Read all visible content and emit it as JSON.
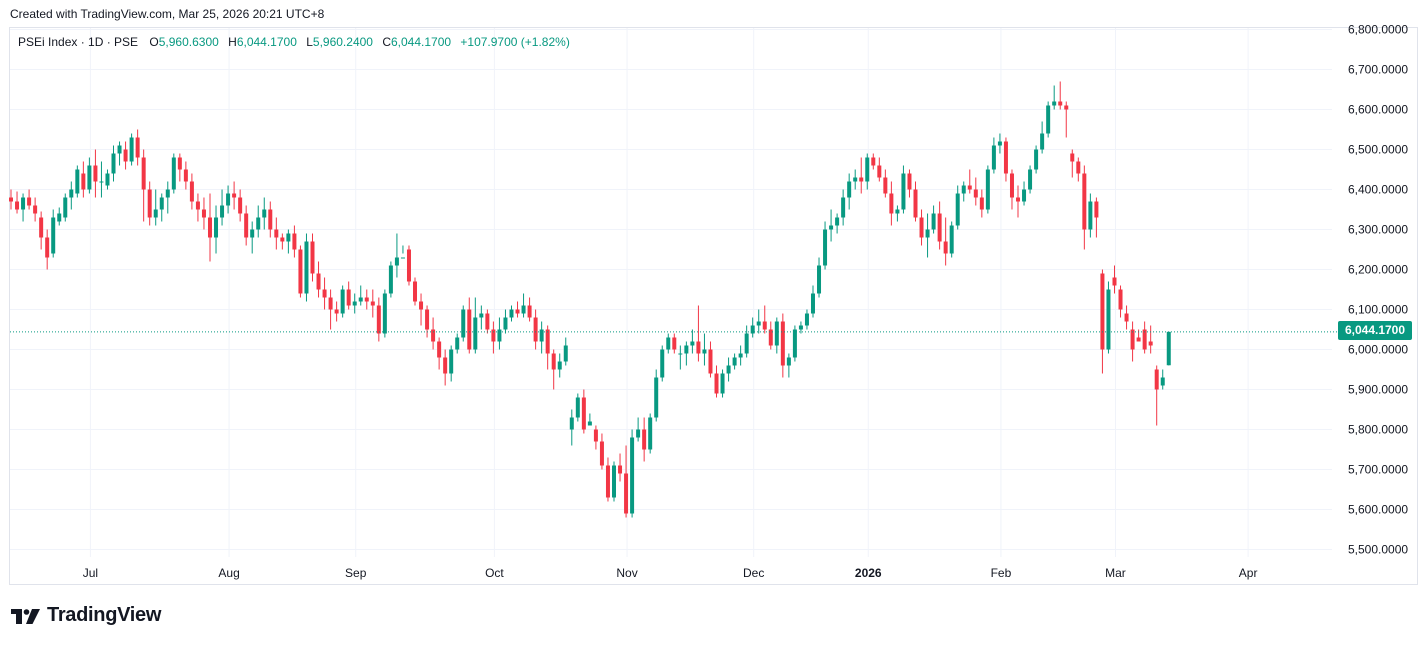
{
  "header": {
    "created_text": "Created with TradingView.com, Mar 25, 2026 20:21 UTC+8"
  },
  "legend": {
    "symbol": "PSEi Index · 1D · PSE",
    "open_label": "O",
    "open_value": "5,960.6300",
    "high_label": "H",
    "high_value": "6,044.1700",
    "low_label": "L",
    "low_value": "5,960.2400",
    "close_label": "C",
    "close_value": "6,044.1700",
    "change": "+107.9700 (+1.82%)"
  },
  "last_price_label": "6,044.1700",
  "footer": {
    "logo_text": "TradingView",
    "logo_icon": "tradingview-logo-icon"
  },
  "colors": {
    "up": "#089981",
    "down": "#F23645",
    "grid": "#f0f3fa",
    "last_line": "#089981"
  },
  "chart_data": {
    "type": "candlestick",
    "title": "PSEi Index · 1D · PSE",
    "ylim": [
      5450,
      6800
    ],
    "y_ticks": [
      {
        "value": 5500,
        "label": "5,500.0000"
      },
      {
        "value": 5600,
        "label": "5,600.0000"
      },
      {
        "value": 5700,
        "label": "5,700.0000"
      },
      {
        "value": 5800,
        "label": "5,800.0000"
      },
      {
        "value": 5900,
        "label": "5,900.0000"
      },
      {
        "value": 6000,
        "label": "6,000.0000"
      },
      {
        "value": 6100,
        "label": "6,100.0000"
      },
      {
        "value": 6200,
        "label": "6,200.0000"
      },
      {
        "value": 6300,
        "label": "6,300.0000"
      },
      {
        "value": 6400,
        "label": "6,400.0000"
      },
      {
        "value": 6500,
        "label": "6,500.0000"
      },
      {
        "value": 6600,
        "label": "6,600.0000"
      },
      {
        "value": 6700,
        "label": "6,700.0000"
      },
      {
        "value": 6800,
        "label": "6,800.0000"
      }
    ],
    "x_labels": [
      {
        "index": 13,
        "label": "Jul",
        "bold": false
      },
      {
        "index": 36,
        "label": "Aug",
        "bold": false
      },
      {
        "index": 57,
        "label": "Sep",
        "bold": false
      },
      {
        "index": 80,
        "label": "Oct",
        "bold": false
      },
      {
        "index": 102,
        "label": "Nov",
        "bold": false
      },
      {
        "index": 123,
        "label": "Dec",
        "bold": false
      },
      {
        "index": 142,
        "label": "2026",
        "bold": true
      },
      {
        "index": 164,
        "label": "Feb",
        "bold": false
      },
      {
        "index": 183,
        "label": "Mar",
        "bold": false
      },
      {
        "index": 205,
        "label": "Apr",
        "bold": false
      }
    ],
    "last_price": 6044.17,
    "candles": [
      [
        6380,
        6400,
        6350,
        6370
      ],
      [
        6370,
        6395,
        6340,
        6350
      ],
      [
        6350,
        6390,
        6320,
        6380
      ],
      [
        6380,
        6400,
        6350,
        6360
      ],
      [
        6360,
        6380,
        6320,
        6340
      ],
      [
        6330,
        6345,
        6250,
        6280
      ],
      [
        6280,
        6300,
        6200,
        6230
      ],
      [
        6240,
        6350,
        6230,
        6330
      ],
      [
        6320,
        6355,
        6310,
        6340
      ],
      [
        6330,
        6390,
        6320,
        6380
      ],
      [
        6380,
        6420,
        6350,
        6400
      ],
      [
        6390,
        6460,
        6380,
        6450
      ],
      [
        6440,
        6470,
        6380,
        6400
      ],
      [
        6400,
        6480,
        6390,
        6460
      ],
      [
        6460,
        6500,
        6380,
        6420
      ],
      [
        6420,
        6470,
        6380,
        6420
      ],
      [
        6410,
        6450,
        6400,
        6440
      ],
      [
        6440,
        6510,
        6420,
        6490
      ],
      [
        6490,
        6520,
        6460,
        6510
      ],
      [
        6500,
        6520,
        6450,
        6470
      ],
      [
        6470,
        6540,
        6460,
        6530
      ],
      [
        6530,
        6550,
        6460,
        6480
      ],
      [
        6480,
        6500,
        6320,
        6400
      ],
      [
        6400,
        6420,
        6310,
        6330
      ],
      [
        6330,
        6400,
        6310,
        6350
      ],
      [
        6350,
        6390,
        6320,
        6380
      ],
      [
        6380,
        6420,
        6340,
        6400
      ],
      [
        6400,
        6490,
        6390,
        6480
      ],
      [
        6480,
        6490,
        6420,
        6450
      ],
      [
        6450,
        6470,
        6400,
        6420
      ],
      [
        6420,
        6440,
        6350,
        6370
      ],
      [
        6370,
        6390,
        6320,
        6350
      ],
      [
        6350,
        6380,
        6300,
        6330
      ],
      [
        6330,
        6390,
        6220,
        6280
      ],
      [
        6280,
        6360,
        6240,
        6330
      ],
      [
        6330,
        6400,
        6310,
        6360
      ],
      [
        6360,
        6410,
        6340,
        6390
      ],
      [
        6390,
        6420,
        6350,
        6380
      ],
      [
        6380,
        6400,
        6320,
        6340
      ],
      [
        6340,
        6360,
        6260,
        6280
      ],
      [
        6280,
        6320,
        6240,
        6300
      ],
      [
        6300,
        6360,
        6280,
        6330
      ],
      [
        6330,
        6380,
        6300,
        6350
      ],
      [
        6350,
        6370,
        6280,
        6300
      ],
      [
        6300,
        6330,
        6250,
        6280
      ],
      [
        6280,
        6290,
        6250,
        6270
      ],
      [
        6270,
        6300,
        6240,
        6290
      ],
      [
        6290,
        6310,
        6230,
        6250
      ],
      [
        6250,
        6260,
        6130,
        6140
      ],
      [
        6140,
        6290,
        6120,
        6270
      ],
      [
        6270,
        6290,
        6170,
        6190
      ],
      [
        6190,
        6220,
        6130,
        6150
      ],
      [
        6150,
        6180,
        6100,
        6130
      ],
      [
        6130,
        6150,
        6050,
        6100
      ],
      [
        6100,
        6120,
        6070,
        6090
      ],
      [
        6090,
        6160,
        6080,
        6150
      ],
      [
        6150,
        6170,
        6100,
        6110
      ],
      [
        6110,
        6140,
        6090,
        6120
      ],
      [
        6120,
        6160,
        6110,
        6130
      ],
      [
        6130,
        6150,
        6100,
        6120
      ],
      [
        6120,
        6150,
        6080,
        6110
      ],
      [
        6110,
        6130,
        6020,
        6040
      ],
      [
        6040,
        6150,
        6030,
        6140
      ],
      [
        6140,
        6220,
        6130,
        6210
      ],
      [
        6210,
        6290,
        6180,
        6230
      ],
      [
        6230,
        6260,
        6240,
        6230
      ],
      [
        6250,
        6260,
        6160,
        6170
      ],
      [
        6170,
        6180,
        6110,
        6120
      ],
      [
        6120,
        6140,
        6060,
        6100
      ],
      [
        6100,
        6110,
        6030,
        6050
      ],
      [
        6050,
        6080,
        6000,
        6020
      ],
      [
        6020,
        6030,
        5950,
        5980
      ],
      [
        5980,
        6000,
        5910,
        5940
      ],
      [
        5940,
        6010,
        5920,
        6000
      ],
      [
        6000,
        6040,
        5990,
        6030
      ],
      [
        6030,
        6110,
        6020,
        6100
      ],
      [
        6100,
        6130,
        5990,
        6000
      ],
      [
        6000,
        6130,
        5990,
        6080
      ],
      [
        6080,
        6110,
        6050,
        6090
      ],
      [
        6090,
        6100,
        6040,
        6050
      ],
      [
        6050,
        6070,
        5990,
        6020
      ],
      [
        6020,
        6080,
        6000,
        6050
      ],
      [
        6050,
        6100,
        6040,
        6080
      ],
      [
        6080,
        6110,
        6070,
        6100
      ],
      [
        6100,
        6120,
        6080,
        6090
      ],
      [
        6090,
        6140,
        6080,
        6110
      ],
      [
        6110,
        6130,
        6070,
        6080
      ],
      [
        6080,
        6100,
        6000,
        6020
      ],
      [
        6020,
        6070,
        5990,
        6050
      ],
      [
        6050,
        6060,
        5950,
        5990
      ],
      [
        5990,
        6000,
        5900,
        5950
      ],
      [
        5950,
        5990,
        5930,
        5970
      ],
      [
        5970,
        6030,
        5960,
        6010
      ],
      [
        5800,
        5850,
        5760,
        5830
      ],
      [
        5830,
        5890,
        5820,
        5880
      ],
      [
        5880,
        5900,
        5790,
        5800
      ],
      [
        5810,
        5840,
        5810,
        5820
      ],
      [
        5800,
        5810,
        5750,
        5770
      ],
      [
        5770,
        5790,
        5700,
        5710
      ],
      [
        5710,
        5730,
        5620,
        5630
      ],
      [
        5630,
        5720,
        5620,
        5710
      ],
      [
        5710,
        5740,
        5670,
        5690
      ],
      [
        5690,
        5760,
        5580,
        5590
      ],
      [
        5590,
        5800,
        5580,
        5780
      ],
      [
        5780,
        5830,
        5770,
        5800
      ],
      [
        5800,
        5830,
        5720,
        5750
      ],
      [
        5750,
        5840,
        5740,
        5830
      ],
      [
        5830,
        5950,
        5820,
        5930
      ],
      [
        5930,
        6010,
        5920,
        6000
      ],
      [
        6000,
        6040,
        5990,
        6030
      ],
      [
        6030,
        6040,
        5990,
        6000
      ],
      [
        5990,
        6010,
        5950,
        5990
      ],
      [
        5990,
        6020,
        5960,
        6010
      ],
      [
        6010,
        6050,
        5990,
        6020
      ],
      [
        6020,
        6110,
        5970,
        5990
      ],
      [
        5990,
        6040,
        5960,
        6000
      ],
      [
        6000,
        6020,
        5930,
        5940
      ],
      [
        5940,
        5960,
        5880,
        5890
      ],
      [
        5890,
        5950,
        5880,
        5940
      ],
      [
        5940,
        5980,
        5920,
        5960
      ],
      [
        5960,
        5990,
        5950,
        5980
      ],
      [
        5980,
        6010,
        5960,
        5990
      ],
      [
        5990,
        6060,
        5980,
        6040
      ],
      [
        6040,
        6080,
        6030,
        6060
      ],
      [
        6060,
        6100,
        6040,
        6070
      ],
      [
        6070,
        6110,
        6040,
        6050
      ],
      [
        6050,
        6070,
        6000,
        6010
      ],
      [
        6010,
        6080,
        5990,
        6070
      ],
      [
        6070,
        6090,
        5930,
        5960
      ],
      [
        5960,
        5990,
        5930,
        5980
      ],
      [
        5980,
        6060,
        5970,
        6050
      ],
      [
        6050,
        6070,
        6040,
        6060
      ],
      [
        6060,
        6100,
        6050,
        6090
      ],
      [
        6090,
        6160,
        6080,
        6140
      ],
      [
        6140,
        6230,
        6130,
        6210
      ],
      [
        6210,
        6320,
        6200,
        6300
      ],
      [
        6300,
        6350,
        6270,
        6310
      ],
      [
        6310,
        6340,
        6290,
        6330
      ],
      [
        6330,
        6400,
        6310,
        6380
      ],
      [
        6380,
        6440,
        6350,
        6420
      ],
      [
        6420,
        6450,
        6400,
        6430
      ],
      [
        6430,
        6480,
        6390,
        6420
      ],
      [
        6420,
        6490,
        6400,
        6480
      ],
      [
        6480,
        6490,
        6450,
        6460
      ],
      [
        6460,
        6480,
        6420,
        6430
      ],
      [
        6430,
        6450,
        6380,
        6390
      ],
      [
        6390,
        6420,
        6310,
        6340
      ],
      [
        6340,
        6360,
        6320,
        6350
      ],
      [
        6350,
        6460,
        6340,
        6440
      ],
      [
        6440,
        6450,
        6380,
        6400
      ],
      [
        6400,
        6420,
        6320,
        6330
      ],
      [
        6330,
        6350,
        6260,
        6280
      ],
      [
        6280,
        6340,
        6230,
        6300
      ],
      [
        6300,
        6360,
        6290,
        6340
      ],
      [
        6340,
        6370,
        6250,
        6270
      ],
      [
        6270,
        6330,
        6210,
        6240
      ],
      [
        6240,
        6320,
        6230,
        6310
      ],
      [
        6310,
        6410,
        6300,
        6390
      ],
      [
        6390,
        6420,
        6370,
        6410
      ],
      [
        6410,
        6450,
        6390,
        6400
      ],
      [
        6400,
        6430,
        6360,
        6380
      ],
      [
        6380,
        6400,
        6330,
        6350
      ],
      [
        6350,
        6460,
        6340,
        6450
      ],
      [
        6450,
        6530,
        6440,
        6510
      ],
      [
        6510,
        6540,
        6490,
        6520
      ],
      [
        6520,
        6530,
        6420,
        6440
      ],
      [
        6440,
        6450,
        6350,
        6380
      ],
      [
        6380,
        6410,
        6330,
        6370
      ],
      [
        6370,
        6420,
        6360,
        6400
      ],
      [
        6400,
        6460,
        6390,
        6450
      ],
      [
        6450,
        6510,
        6440,
        6500
      ],
      [
        6500,
        6570,
        6490,
        6540
      ],
      [
        6540,
        6620,
        6530,
        6610
      ],
      [
        6610,
        6660,
        6600,
        6620
      ],
      [
        6620,
        6670,
        6600,
        6610
      ],
      [
        6610,
        6620,
        6530,
        6600
      ],
      [
        6490,
        6500,
        6430,
        6470
      ],
      [
        6470,
        6480,
        6420,
        6440
      ],
      [
        6440,
        6460,
        6250,
        6300
      ],
      [
        6300,
        6390,
        6280,
        6370
      ],
      [
        6370,
        6380,
        6280,
        6330
      ],
      [
        6190,
        6200,
        5940,
        6000
      ],
      [
        6000,
        6170,
        5990,
        6150
      ],
      [
        6180,
        6210,
        6140,
        6160
      ],
      [
        6150,
        6160,
        6080,
        6100
      ],
      [
        6090,
        6110,
        6050,
        6070
      ],
      [
        6050,
        6070,
        5970,
        6000
      ],
      [
        6030,
        6050,
        6020,
        6020
      ],
      [
        6050,
        6070,
        5990,
        6000
      ],
      [
        6020,
        6060,
        5990,
        6010
      ],
      [
        5950,
        5960,
        5810,
        5900
      ],
      [
        5910,
        5950,
        5900,
        5930
      ],
      [
        5960.63,
        6044.17,
        5960.24,
        6044.17
      ]
    ]
  }
}
